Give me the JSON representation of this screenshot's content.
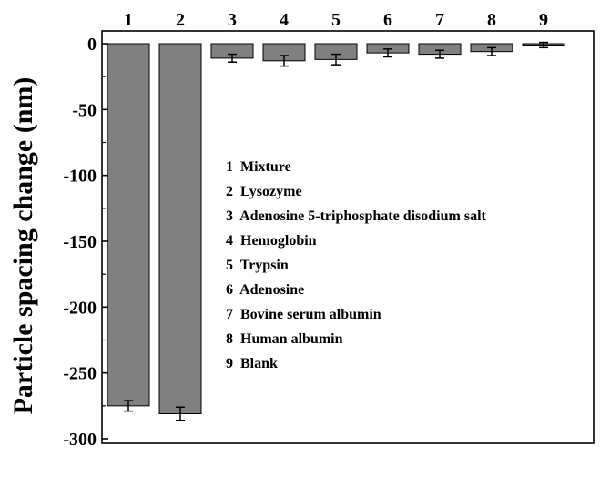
{
  "chart_data": {
    "type": "bar",
    "title": "",
    "xlabel": "",
    "ylabel": "Particle spacing change (nm)",
    "ylim": [
      -300,
      0
    ],
    "yticks": [
      0,
      -50,
      -100,
      -150,
      -200,
      -250,
      -300
    ],
    "ytick_labels": [
      "0",
      "-50",
      "-100",
      "-150",
      "-200",
      "-250",
      "-300"
    ],
    "categories": [
      "1",
      "2",
      "3",
      "4",
      "5",
      "6",
      "7",
      "8",
      "9"
    ],
    "values": [
      -275,
      -281,
      -11,
      -13,
      -12,
      -7,
      -8,
      -6,
      -1
    ],
    "errors": [
      4,
      5,
      3,
      4,
      4,
      3,
      3,
      3,
      2
    ],
    "bar_color": "#808080",
    "grid": false,
    "legend": {
      "placement": "center-right",
      "entries": [
        "1  Mixture",
        "2  Lysozyme",
        "3  Adenosine 5-triphosphate disodium salt",
        "4  Hemoglobin",
        "5  Trypsin",
        "6  Adenosine",
        "7  Bovine serum albumin",
        "8  Human albumin",
        "9  Blank"
      ]
    }
  }
}
